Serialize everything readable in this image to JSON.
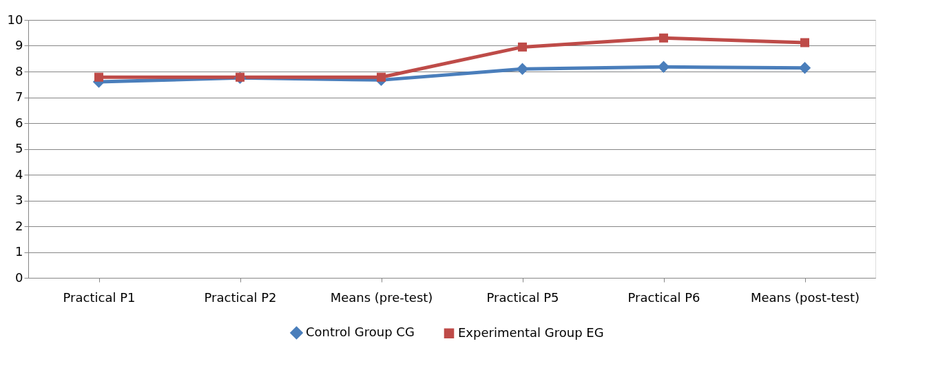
{
  "chart_data": {
    "type": "line",
    "categories": [
      "Practical P1",
      "Practical P2",
      "Means (pre-test)",
      "Practical P5",
      "Practical P6",
      "Means (post-test)"
    ],
    "series": [
      {
        "name": "Control Group CG",
        "color": "#4a7ebb",
        "marker": "diamond",
        "values": [
          7.6,
          7.75,
          7.67,
          8.1,
          8.18,
          8.14
        ]
      },
      {
        "name": "Experimental Group EG",
        "color": "#be4b48",
        "marker": "square",
        "values": [
          7.78,
          7.78,
          7.78,
          8.95,
          9.3,
          9.12
        ]
      }
    ],
    "ylim": [
      0,
      10
    ],
    "yticks": [
      0,
      1,
      2,
      3,
      4,
      5,
      6,
      7,
      8,
      9,
      10
    ],
    "grid": "y",
    "legend": "bottom"
  }
}
